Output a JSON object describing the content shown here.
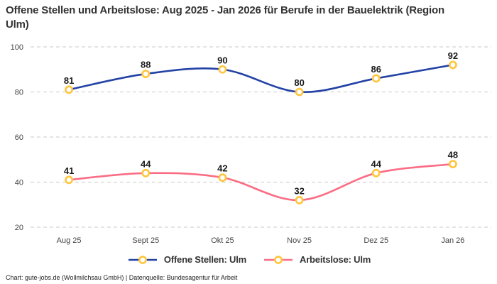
{
  "title": "Offene Stellen und Arbeitslose: Aug 2025 - Jan 2026 für Berufe in der Bauelektrik (Region Ulm)",
  "footer": {
    "text": "Chart: gute-jobs.de (Wollmilchsau GmbH) | Datenquelle: Bundesagentur für Arbeit"
  },
  "colors": {
    "background": "#ffffff",
    "grid": "#c9c9c9",
    "tick_text": "#444444",
    "title_text": "#333333",
    "marker_ring": "#ffc53d",
    "marker_fill": "#ffffff"
  },
  "chart_data": {
    "type": "line",
    "title": "Offene Stellen und Arbeitslose: Aug 2025 - Jan 2026 für Berufe in der Bauelektrik (Region Ulm)",
    "categories": [
      "Aug 25",
      "Sept 25",
      "Okt 25",
      "Nov 25",
      "Dez 25",
      "Jan 26"
    ],
    "series": [
      {
        "name": "Offene Stellen: Ulm",
        "color": "#2342a5",
        "values": [
          81,
          88,
          90,
          80,
          86,
          92
        ]
      },
      {
        "name": "Arbeitslose: Ulm",
        "color": "#fa6d85",
        "values": [
          41,
          44,
          42,
          32,
          44,
          48
        ]
      }
    ],
    "marker_color": "#ffc53d",
    "xlabel": "",
    "ylabel": "",
    "ylim": [
      20,
      100
    ],
    "yticks": [
      20,
      40,
      60,
      80,
      100
    ],
    "grid": "horizontal-dashed",
    "legend_position": "bottom-center",
    "curve": "smooth"
  }
}
